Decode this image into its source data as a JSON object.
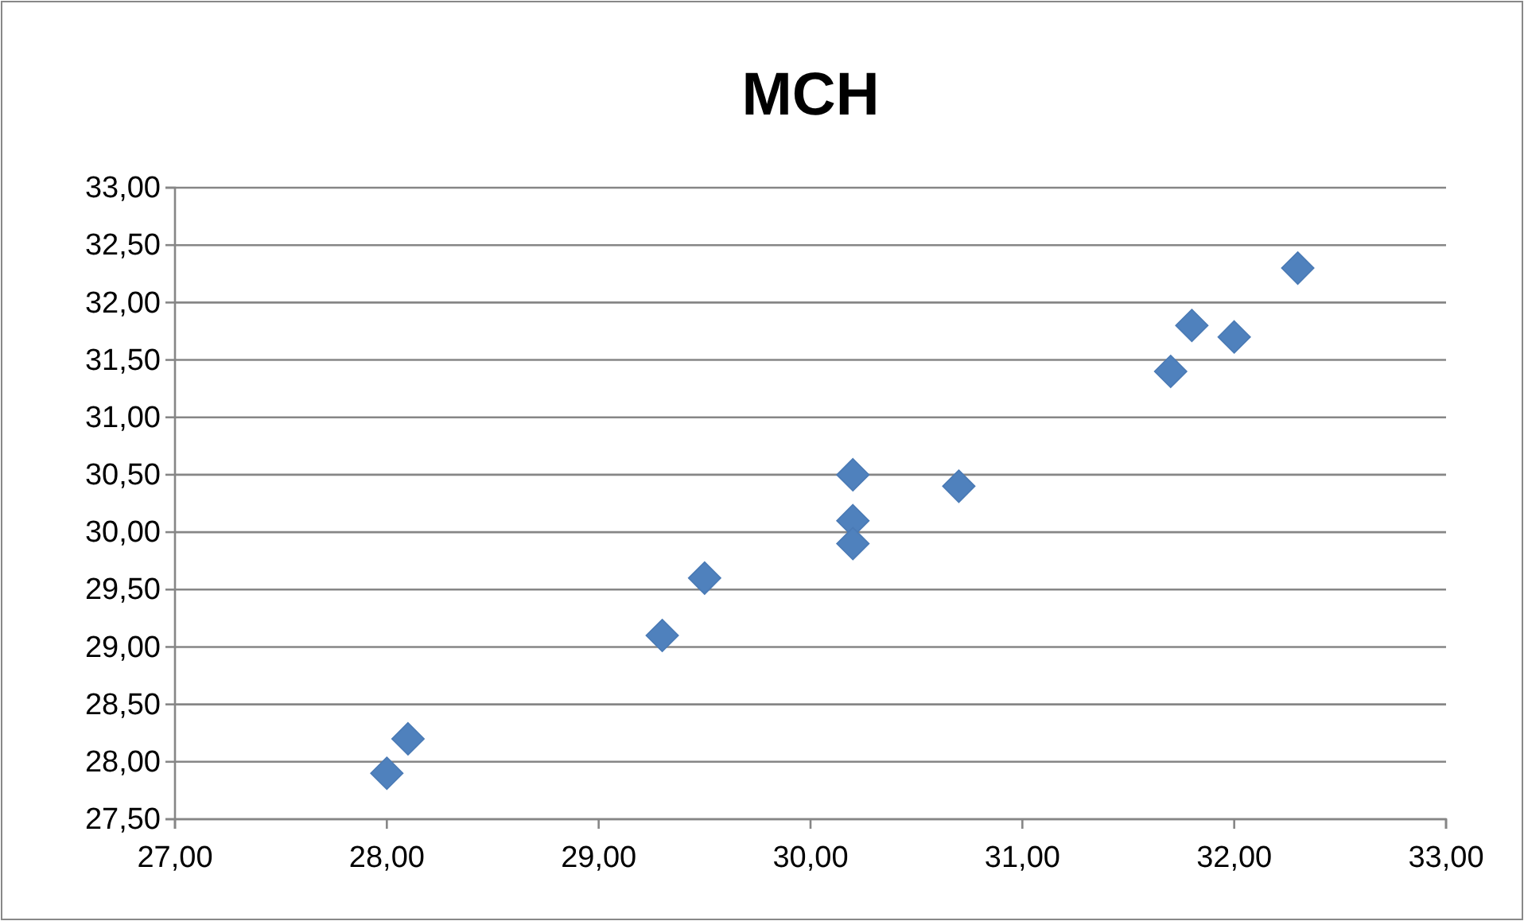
{
  "chart_data": {
    "type": "scatter",
    "title": "MCH",
    "series": [
      {
        "color": "#4f81bd",
        "x": [
          28.0,
          28.1,
          29.3,
          29.5,
          30.2,
          30.2,
          30.2,
          30.7,
          31.7,
          31.8,
          32.0,
          32.3
        ],
        "values": [
          27.9,
          28.2,
          29.1,
          29.6,
          30.5,
          30.1,
          29.9,
          30.4,
          31.4,
          31.8,
          31.7,
          32.3
        ]
      }
    ],
    "xlim": [
      27,
      33
    ],
    "xticks": [
      {
        "value": 27,
        "label": "27,00"
      },
      {
        "value": 28,
        "label": "28,00"
      },
      {
        "value": 29,
        "label": "29,00"
      },
      {
        "value": 30,
        "label": "30,00"
      },
      {
        "value": 31,
        "label": "31,00"
      },
      {
        "value": 32,
        "label": "32,00"
      },
      {
        "value": 33,
        "label": "33,00"
      }
    ],
    "ylim": [
      27.5,
      33
    ],
    "yticks": [
      {
        "value": 27.5,
        "label": "27,50"
      },
      {
        "value": 28,
        "label": "28,00"
      },
      {
        "value": 28.5,
        "label": "28,50"
      },
      {
        "value": 29,
        "label": "29,00"
      },
      {
        "value": 29.5,
        "label": "29,50"
      },
      {
        "value": 30,
        "label": "30,00"
      },
      {
        "value": 30.5,
        "label": "30,50"
      },
      {
        "value": 31,
        "label": "31,00"
      },
      {
        "value": 31.5,
        "label": "31,50"
      },
      {
        "value": 32,
        "label": "32,00"
      },
      {
        "value": 32.5,
        "label": "32,50"
      },
      {
        "value": 33,
        "label": "33,00"
      }
    ],
    "grid": "y",
    "marker": "diamond"
  }
}
